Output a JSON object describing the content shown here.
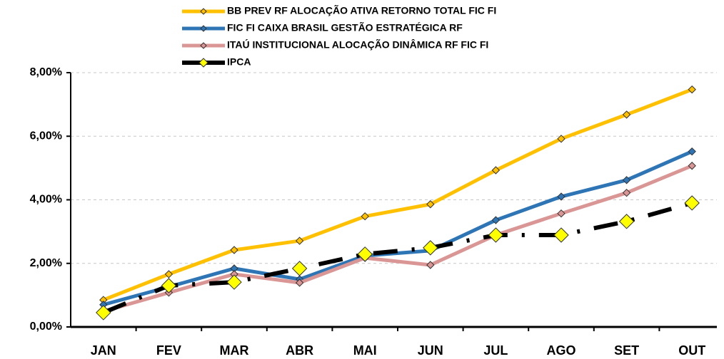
{
  "chart_data": {
    "type": "line",
    "categories": [
      "JAN",
      "FEV",
      "MAR",
      "ABR",
      "MAI",
      "JUN",
      "JUL",
      "AGO",
      "SET",
      "OUT"
    ],
    "series": [
      {
        "name": "BB PREV RF ALOCAÇÃO ATIVA RETORNO TOTAL FIC FI",
        "color": "#ffc000",
        "values": [
          0.85,
          1.66,
          2.42,
          2.71,
          3.48,
          3.86,
          4.93,
          5.92,
          6.68,
          7.47
        ]
      },
      {
        "name": "FIC FI CAIXA BRASIL GESTÃO ESTRATÉGICA RF",
        "color": "#2e75b6",
        "values": [
          0.7,
          1.26,
          1.84,
          1.5,
          2.24,
          2.4,
          3.36,
          4.1,
          4.62,
          5.52
        ]
      },
      {
        "name": "ITAÚ INSTITUCIONAL ALOCAÇÃO DINÂMICA RF FIC FI",
        "color": "#d99694",
        "values": [
          0.49,
          1.08,
          1.66,
          1.39,
          2.17,
          1.95,
          2.89,
          3.57,
          4.22,
          5.07
        ]
      },
      {
        "name": "IPCA",
        "color": "#000000",
        "marker_color": "#ffff00",
        "dashed": true,
        "values": [
          0.45,
          1.3,
          1.41,
          1.84,
          2.29,
          2.49,
          2.89,
          2.89,
          3.32,
          3.9
        ]
      }
    ],
    "ylim": [
      0,
      8
    ],
    "yticks": [
      {
        "value": 0,
        "label": "0,00%"
      },
      {
        "value": 2,
        "label": "2,00%"
      },
      {
        "value": 4,
        "label": "4,00%"
      },
      {
        "value": 6,
        "label": "6,00%"
      },
      {
        "value": 8,
        "label": "8,00%"
      }
    ],
    "grid": true,
    "legend": "top"
  }
}
